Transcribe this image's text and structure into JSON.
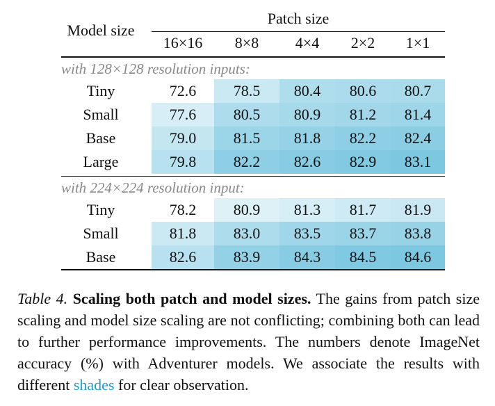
{
  "header": {
    "model_size": "Model size",
    "patch_size": "Patch size",
    "patches": [
      "16×16",
      "8×8",
      "4×4",
      "2×2",
      "1×1"
    ]
  },
  "sections": [
    {
      "label": "with 128×128 resolution inputs:",
      "rows": [
        {
          "model": "Tiny",
          "values": [
            "72.6",
            "78.5",
            "80.4",
            "80.6",
            "80.7"
          ]
        },
        {
          "model": "Small",
          "values": [
            "77.6",
            "80.5",
            "80.9",
            "81.2",
            "81.4"
          ]
        },
        {
          "model": "Base",
          "values": [
            "79.0",
            "81.5",
            "81.8",
            "82.2",
            "82.4"
          ]
        },
        {
          "model": "Large",
          "values": [
            "79.8",
            "82.2",
            "82.6",
            "82.9",
            "83.1"
          ]
        }
      ]
    },
    {
      "label": "with 224×224 resolution input:",
      "rows": [
        {
          "model": "Tiny",
          "values": [
            "78.2",
            "80.9",
            "81.3",
            "81.7",
            "81.9"
          ]
        },
        {
          "model": "Small",
          "values": [
            "81.8",
            "83.0",
            "83.5",
            "83.7",
            "83.8"
          ]
        },
        {
          "model": "Base",
          "values": [
            "82.6",
            "83.9",
            "84.3",
            "84.5",
            "84.6"
          ]
        }
      ]
    }
  ],
  "caption": {
    "label": "Table 4.",
    "title": "Scaling both patch and model sizes.",
    "text_before": "The gains from patch size scaling and model size scaling are not conflicting; combining both can lead to further performance improvements. The numbers denote ImageNet accuracy (%) with Adventurer models. We associate the results with different",
    "highlight": "shades",
    "text_after": "for clear observation."
  }
}
